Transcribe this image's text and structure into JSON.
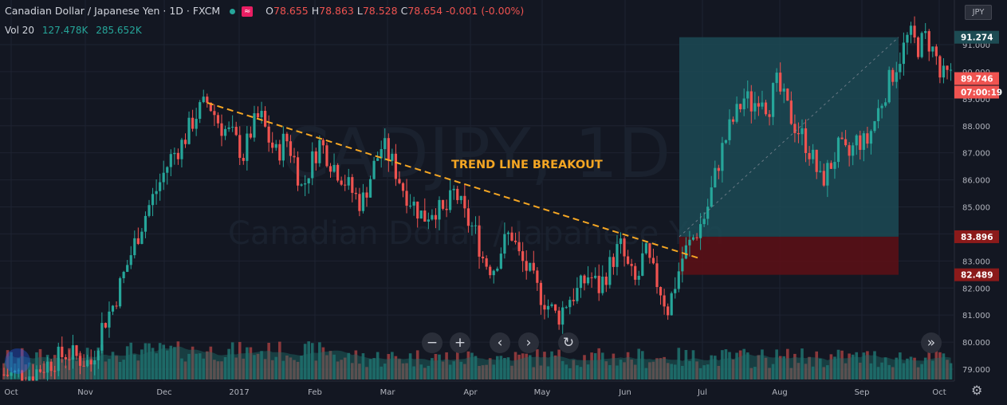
{
  "header": {
    "symbol_title": "Canadian Dollar / Japanese Yen · 1D · FXCM",
    "open": "78.655",
    "high": "78.863",
    "low": "78.528",
    "close": "78.654",
    "change": "-0.001 (-0.00%)",
    "o_label": "O",
    "h_label": "H",
    "l_label": "L",
    "c_label": "C"
  },
  "volume": {
    "label": "Vol 20",
    "value1": "127.478K",
    "value2": "285.652K"
  },
  "currency_badge": "JPY",
  "watermark": {
    "line1": "CADJPY, 1D",
    "line2": "Canadian Dollar / Japanese Yen"
  },
  "annotation": {
    "text": "TREND LINE BREAKOUT",
    "color": "#f5a623"
  },
  "price_axis": {
    "ticks": [
      "91.000",
      "90.000",
      "89.000",
      "88.000",
      "87.000",
      "86.000",
      "85.000",
      "84.000",
      "83.000",
      "82.000",
      "81.000",
      "80.000",
      "79.000"
    ],
    "labels": {
      "target": "91.274",
      "current": "89.746",
      "countdown": "07:00:19",
      "entry": "83.896",
      "stop": "82.489"
    }
  },
  "time_axis": [
    "Oct",
    "Nov",
    "Dec",
    "2017",
    "Feb",
    "Mar",
    "Apr",
    "May",
    "Jun",
    "Jul",
    "Aug",
    "Sep",
    "Oct"
  ],
  "nav_icons": [
    "zoom-out-icon",
    "zoom-in-icon",
    "scroll-left-icon",
    "scroll-right-icon",
    "reset-icon",
    "scroll-to-end-icon"
  ],
  "colors": {
    "bg": "#131722",
    "up": "#26a69a",
    "down": "#ef5350",
    "target_zone": "#1c4a55",
    "stop_zone": "#5a1016"
  },
  "chart_data": {
    "type": "candlestick",
    "y_axis_range": [
      78.7,
      92.3
    ],
    "trend_line": {
      "from": [
        "Dec 2016",
        88.85
      ],
      "to": [
        "Jun 2017",
        83.1
      ]
    },
    "position": {
      "entry": 83.896,
      "target": 91.274,
      "stop": 82.489
    },
    "path": [
      [
        "Oct 2016",
        78.8
      ],
      [
        "Oct 2016",
        79.6
      ],
      [
        "Nov 2016",
        79.2
      ],
      [
        "Nov 2016",
        80.6
      ],
      [
        "Nov 2016",
        81.4
      ],
      [
        "Nov 2016",
        82.6
      ],
      [
        "Nov 2016",
        83.8
      ],
      [
        "Nov 2016",
        84.9
      ],
      [
        "Nov 2016",
        85.8
      ],
      [
        "Dec 2016",
        86.8
      ],
      [
        "Dec 2016",
        87.4
      ],
      [
        "Dec 2016",
        88.4
      ],
      [
        "Dec 2016",
        88.9
      ],
      [
        "Dec 2016",
        88.0
      ],
      [
        "Dec 2016",
        87.6
      ],
      [
        "Jan 2017",
        86.9
      ],
      [
        "Jan 2017",
        87.9
      ],
      [
        "Jan 2017",
        88.4
      ],
      [
        "Jan 2017",
        87.5
      ],
      [
        "Jan 2017",
        86.9
      ],
      [
        "Jan 2017",
        87.6
      ],
      [
        "Jan 2017",
        86.8
      ],
      [
        "Jan 2017",
        85.6
      ],
      [
        "Jan 2017",
        86.6
      ],
      [
        "Feb 2017",
        87.4
      ],
      [
        "Feb 2017",
        86.7
      ],
      [
        "Feb 2017",
        86.2
      ],
      [
        "Feb 2017",
        85.6
      ],
      [
        "Feb 2017",
        85.1
      ],
      [
        "Feb 2017",
        86.3
      ],
      [
        "Feb 2017",
        87.3
      ],
      [
        "Mar 2017",
        86.6
      ],
      [
        "Mar 2017",
        85.7
      ],
      [
        "Mar 2017",
        85.1
      ],
      [
        "Mar 2017",
        84.6
      ],
      [
        "Mar 2017",
        85.0
      ],
      [
        "Mar 2017",
        84.7
      ],
      [
        "Mar 2017",
        85.6
      ],
      [
        "Mar 2017",
        84.6
      ],
      [
        "Apr 2017",
        84.1
      ],
      [
        "Apr 2017",
        83.0
      ],
      [
        "Apr 2017",
        82.7
      ],
      [
        "Apr 2017",
        83.5
      ],
      [
        "Apr 2017",
        84.1
      ],
      [
        "Apr 2017",
        83.1
      ],
      [
        "Apr 2017",
        82.6
      ],
      [
        "Apr 2017",
        81.9
      ],
      [
        "May 2017",
        81.4
      ],
      [
        "May 2017",
        80.9
      ],
      [
        "May 2017",
        81.6
      ],
      [
        "May 2017",
        81.9
      ],
      [
        "May 2017",
        82.5
      ],
      [
        "May 2017",
        82.0
      ],
      [
        "May 2017",
        82.8
      ],
      [
        "May 2017",
        83.6
      ],
      [
        "Jun 2017",
        82.6
      ],
      [
        "Jun 2017",
        82.1
      ],
      [
        "Jun 2017",
        83.4
      ],
      [
        "Jun 2017",
        82.6
      ],
      [
        "Jun 2017",
        82.0
      ],
      [
        "Jun 2017",
        81.2
      ],
      [
        "Jun 2017",
        82.2
      ],
      [
        "Jun 2017",
        83.2
      ],
      [
        "Jun 2017",
        83.7
      ],
      [
        "Jun 2017",
        84.2
      ],
      [
        "Jul 2017",
        84.8
      ],
      [
        "Jul 2017",
        86.0
      ],
      [
        "Jul 2017",
        87.1
      ],
      [
        "Jul 2017",
        87.9
      ],
      [
        "Jul 2017",
        88.5
      ],
      [
        "Jul 2017",
        89.1
      ],
      [
        "Jul 2017",
        88.7
      ],
      [
        "Jul 2017",
        89.3
      ],
      [
        "Jul 2017",
        88.6
      ],
      [
        "Jul 2017",
        89.6
      ],
      [
        "Aug 2017",
        88.9
      ],
      [
        "Aug 2017",
        88.1
      ],
      [
        "Aug 2017",
        87.6
      ],
      [
        "Aug 2017",
        86.9
      ],
      [
        "Aug 2017",
        85.9
      ],
      [
        "Aug 2017",
        86.5
      ],
      [
        "Aug 2017",
        87.2
      ],
      [
        "Aug 2017",
        86.8
      ],
      [
        "Aug 2017",
        87.5
      ],
      [
        "Sep 2017",
        87.3
      ],
      [
        "Sep 2017",
        88.2
      ],
      [
        "Sep 2017",
        89.1
      ],
      [
        "Sep 2017",
        89.9
      ],
      [
        "Sep 2017",
        90.6
      ],
      [
        "Sep 2017",
        91.4
      ],
      [
        "Sep 2017",
        90.9
      ],
      [
        "Sep 2017",
        91.3
      ],
      [
        "Sep 2017",
        90.6
      ],
      [
        "Oct 2017",
        90.3
      ],
      [
        "Oct 2017",
        90.1
      ],
      [
        "Oct 2017",
        89.8
      ]
    ]
  }
}
